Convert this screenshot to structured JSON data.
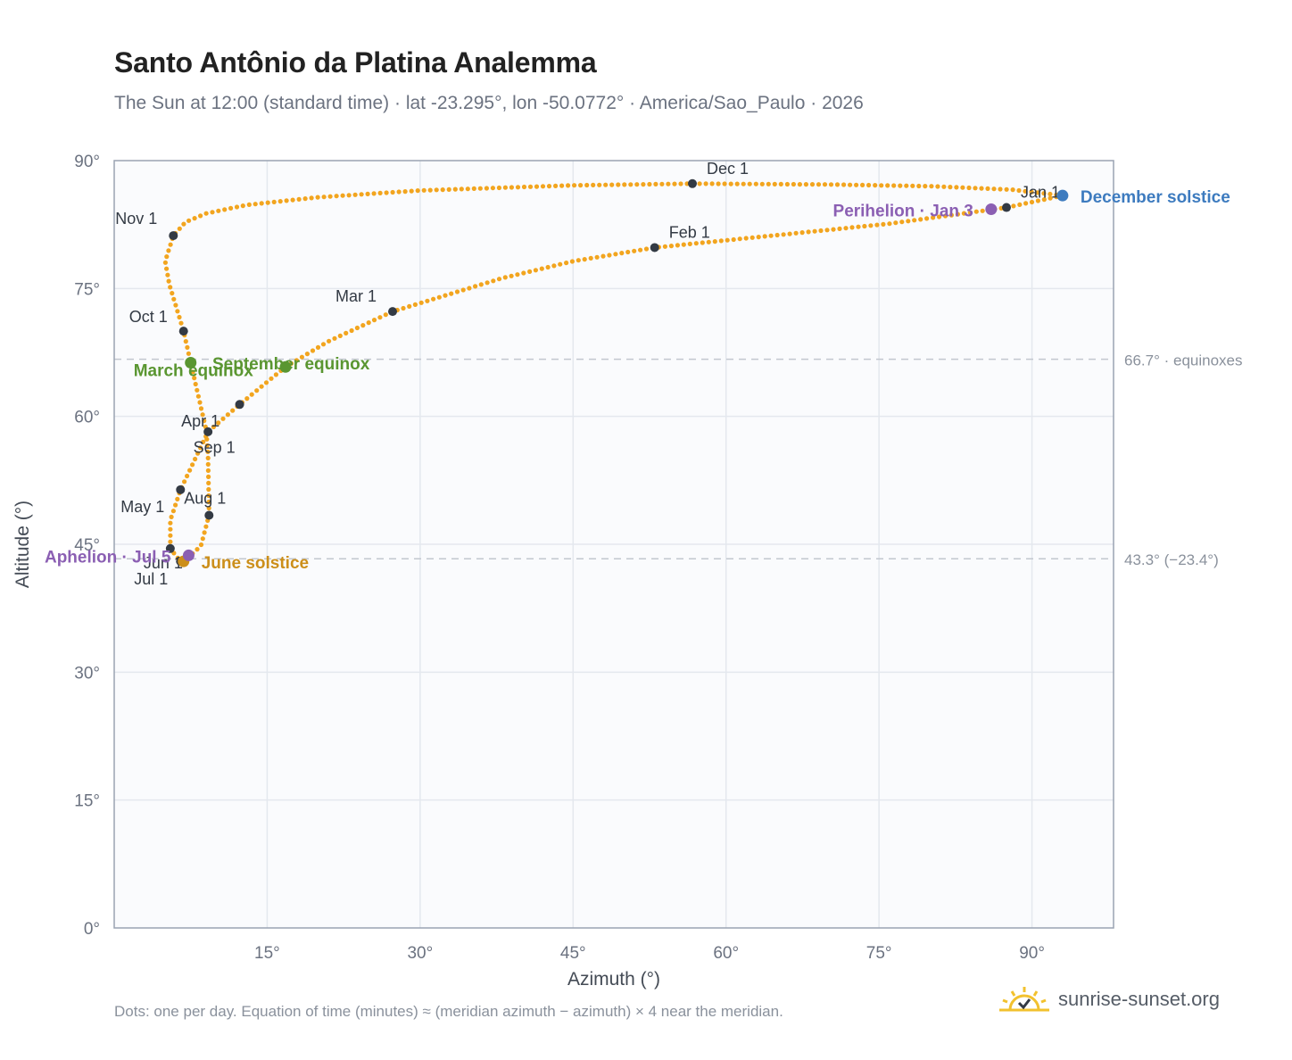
{
  "header": {
    "title": "Santo Antônio da Platina Analemma",
    "subtitle": "The Sun at 12:00 (standard time) · lat -23.295°, lon -50.0772° · America/Sao_Paulo · 2026"
  },
  "footer": {
    "note": "Dots: one per day. Equation of time (minutes) ≈ (meridian azimuth − azimuth) × 4 near the meridian.",
    "brand": "sunrise-sunset.org",
    "brand_icon": "sun-logo-icon"
  },
  "colors": {
    "path": "#f2a51f",
    "month_marker": "#333a44",
    "equinox": "#5a9631",
    "june_solstice": "#cc8f1a",
    "december_solstice": "#3d7bbf",
    "apsis": "#8b5fb3",
    "grid": "#e4e8ee",
    "plot_bg": "#fafbfd",
    "frame": "#9aa3b2",
    "reference_line": "#c2c7cf"
  },
  "chart_data": {
    "type": "scatter",
    "xlabel": "Azimuth (°)",
    "ylabel": "Altitude (°)",
    "xlim": [
      0,
      98
    ],
    "ylim": [
      0,
      90
    ],
    "x_ticks": [
      15,
      30,
      45,
      60,
      75,
      90
    ],
    "x_tick_labels": [
      "15°",
      "30°",
      "45°",
      "60°",
      "75°",
      "90°"
    ],
    "y_ticks": [
      0,
      15,
      30,
      45,
      60,
      75,
      90
    ],
    "y_tick_labels": [
      "0°",
      "15°",
      "30°",
      "45°",
      "60°",
      "75°",
      "90°"
    ],
    "grid": true,
    "analemma_path": [
      [
        93.0,
        85.9
      ],
      [
        87.5,
        84.5
      ],
      [
        76.0,
        82.6
      ],
      [
        53.0,
        79.8
      ],
      [
        45.0,
        78.2
      ],
      [
        38.0,
        76.2
      ],
      [
        27.3,
        72.3
      ],
      [
        21.0,
        68.8
      ],
      [
        16.8,
        65.8
      ],
      [
        12.3,
        61.4
      ],
      [
        9.2,
        58.2
      ],
      [
        6.5,
        51.4
      ],
      [
        5.5,
        47.8
      ],
      [
        5.5,
        44.5
      ],
      [
        6.5,
        43.0
      ],
      [
        7.2,
        43.4
      ],
      [
        8.5,
        44.8
      ],
      [
        9.3,
        48.4
      ],
      [
        9.2,
        55.5
      ],
      [
        9.0,
        58.5
      ],
      [
        7.5,
        66.3
      ],
      [
        6.8,
        70.0
      ],
      [
        5.4,
        75.5
      ],
      [
        5.0,
        78.2
      ],
      [
        5.8,
        81.2
      ],
      [
        7.0,
        82.8
      ],
      [
        9.0,
        83.8
      ],
      [
        13.0,
        84.8
      ],
      [
        20.0,
        85.7
      ],
      [
        30.0,
        86.5
      ],
      [
        45.0,
        87.1
      ],
      [
        56.7,
        87.3
      ],
      [
        70.0,
        87.2
      ],
      [
        80.0,
        87.0
      ],
      [
        88.0,
        86.6
      ],
      [
        93.0,
        85.9
      ]
    ],
    "month_markers": [
      {
        "label": "Jan 1",
        "az": 87.5,
        "alt": 84.5
      },
      {
        "label": "Feb 1",
        "az": 53.0,
        "alt": 79.8
      },
      {
        "label": "Mar 1",
        "az": 27.3,
        "alt": 72.3
      },
      {
        "label": "Apr 1",
        "az": 9.2,
        "alt": 58.2
      },
      {
        "label": "May 1",
        "az": 6.5,
        "alt": 51.4
      },
      {
        "label": "Jun 1",
        "az": 5.5,
        "alt": 44.5
      },
      {
        "label": "Jul 1",
        "az": 6.5,
        "alt": 43.0
      },
      {
        "label": "Aug 1",
        "az": 9.3,
        "alt": 48.4
      },
      {
        "label": "Sep 1",
        "az": 12.3,
        "alt": 61.4
      },
      {
        "label": "Oct 1",
        "az": 6.8,
        "alt": 70.0
      },
      {
        "label": "Nov 1",
        "az": 5.8,
        "alt": 81.2
      },
      {
        "label": "Dec 1",
        "az": 56.7,
        "alt": 87.3
      }
    ],
    "events": [
      {
        "label": "December solstice",
        "az": 93.0,
        "alt": 85.9,
        "color": "#3d7bbf"
      },
      {
        "label": "Perihelion · Jan 3",
        "az": 86.0,
        "alt": 84.3,
        "color": "#8b5fb3"
      },
      {
        "label": "March equinox",
        "az": 7.5,
        "alt": 66.3,
        "color": "#5a9631"
      },
      {
        "label": "September equinox",
        "az": 16.8,
        "alt": 65.8,
        "color": "#5a9631"
      },
      {
        "label": "June solstice",
        "az": 6.8,
        "alt": 43.0,
        "color": "#cc8f1a"
      },
      {
        "label": "Aphelion · Jul 5",
        "az": 7.3,
        "alt": 43.7,
        "color": "#8b5fb3"
      }
    ],
    "reference_lines": [
      {
        "alt": 66.7,
        "label": "66.7° · equinoxes"
      },
      {
        "alt": 43.3,
        "label": "43.3° (−23.4°)"
      }
    ]
  }
}
